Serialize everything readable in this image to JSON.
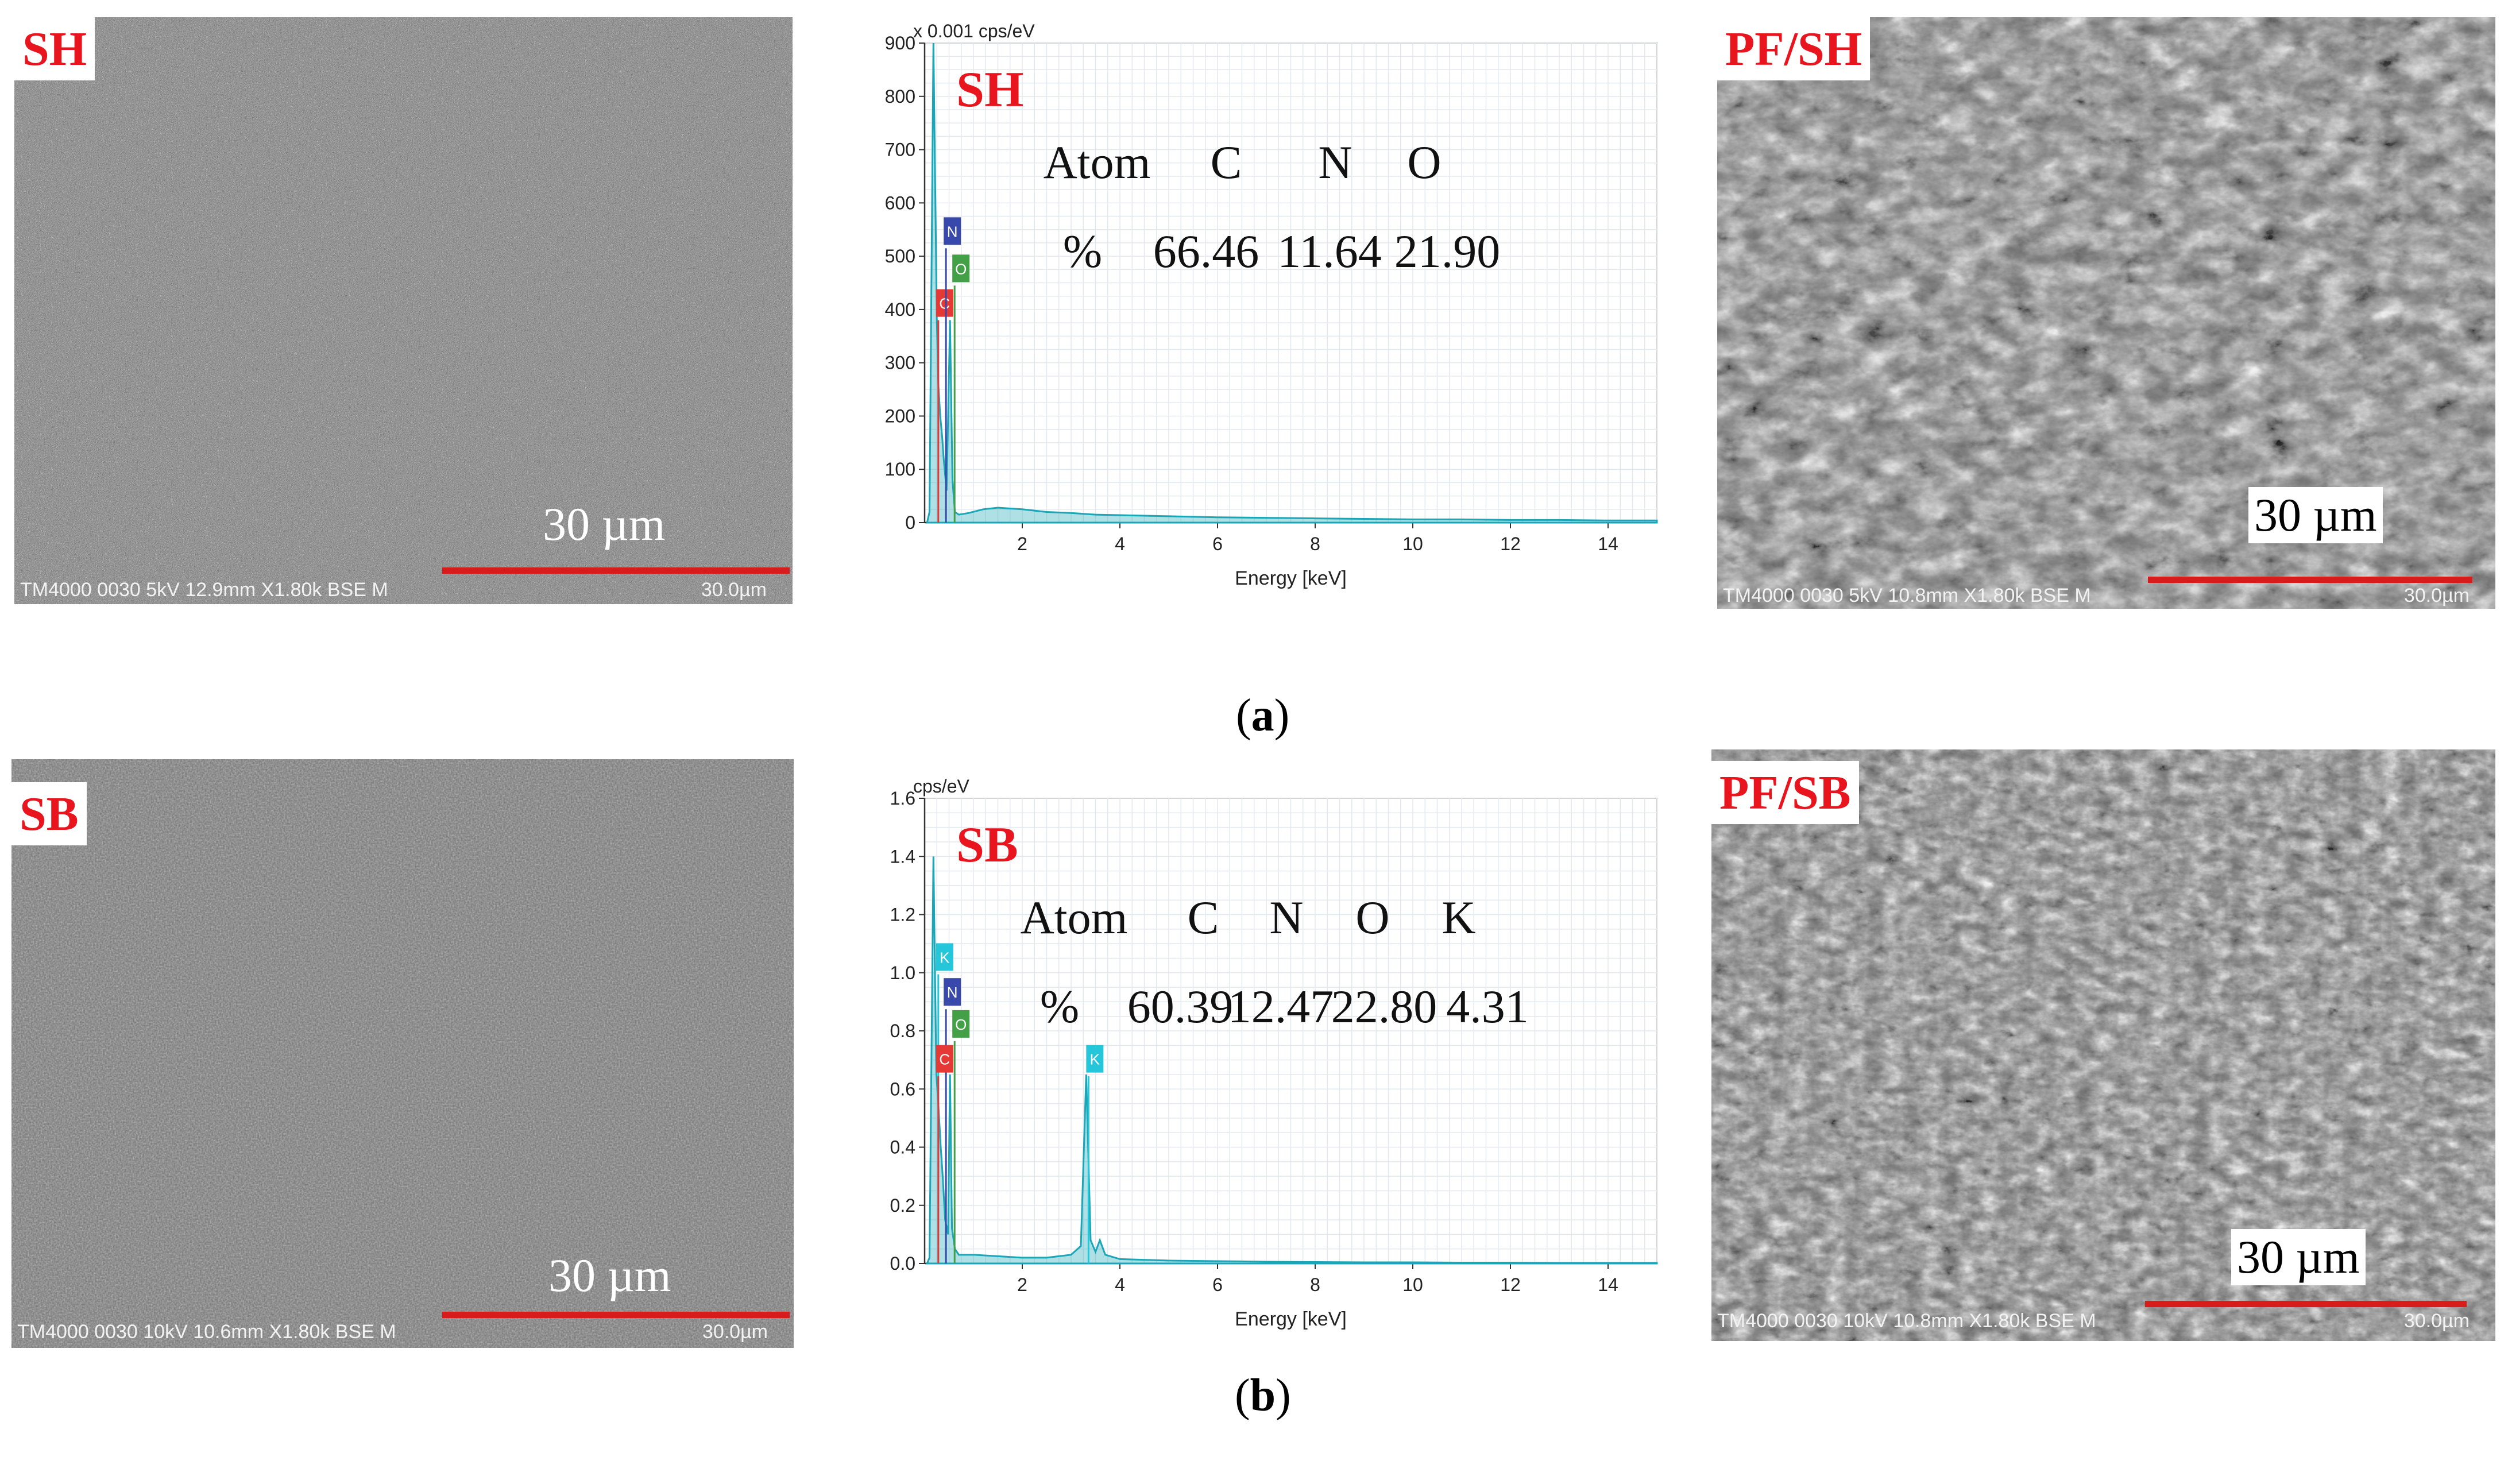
{
  "row_a": {
    "sem_left": {
      "label": "SH",
      "scale_text": "30 µm",
      "meta_left": "TM4000 0030 5kV 12.9mm X1.80k BSE M",
      "meta_right": "30.0µm"
    },
    "sem_right": {
      "label": "PF/SH",
      "scale_text": "30 µm",
      "meta_left": "TM4000 0030 5kV 10.8mm X1.80k BSE M",
      "meta_right": "30.0µm"
    },
    "caption_letter": "a",
    "spectrum": {
      "unit_label": "x 0.001 cps/eV",
      "sample_label": "SH",
      "table_header": [
        "Atom",
        "C",
        "N",
        "O"
      ],
      "table_values": [
        "%",
        "66.46",
        "11.64",
        "21.90"
      ],
      "peak_labels": [
        "N",
        "O",
        "C"
      ]
    }
  },
  "row_b": {
    "sem_left": {
      "label": "SB",
      "scale_text": "30 µm",
      "meta_left": "TM4000 0030 10kV 10.6mm X1.80k BSE M",
      "meta_right": "30.0µm"
    },
    "sem_right": {
      "label": "PF/SB",
      "scale_text": "30 µm",
      "meta_left": "TM4000 0030 10kV 10.8mm X1.80k BSE M",
      "meta_right": "30.0µm"
    },
    "caption_letter": "b",
    "spectrum": {
      "unit_label": "cps/eV",
      "sample_label": "SB",
      "table_header": [
        "Atom",
        "C",
        "N",
        "O",
        "K"
      ],
      "table_values": [
        "%",
        "60.39",
        "12.47",
        "22.80",
        "4.31"
      ],
      "peak_labels": [
        "K",
        "N",
        "O",
        "C",
        "K"
      ]
    }
  },
  "colors": {
    "label_red": "#e8141e",
    "spectrum_cyan": "#1aa6b7",
    "peak_C": "#e53935",
    "peak_N": "#3949ab",
    "peak_O": "#43a047",
    "peak_K": "#26c6da"
  },
  "chart_data": [
    {
      "type": "line",
      "sample": "SH",
      "xlabel": "Energy [keV]",
      "ylabel": "x 0.001 cps/eV",
      "xlim": [
        0,
        15
      ],
      "ylim": [
        0,
        900
      ],
      "xticks": [
        2,
        4,
        6,
        8,
        10,
        12,
        14
      ],
      "yticks": [
        0,
        100,
        200,
        300,
        400,
        500,
        600,
        700,
        800,
        900
      ],
      "grid": true,
      "x": [
        0.05,
        0.1,
        0.18,
        0.25,
        0.28,
        0.32,
        0.36,
        0.39,
        0.45,
        0.52,
        0.57,
        0.62,
        0.7,
        0.9,
        1.2,
        1.5,
        2.0,
        2.5,
        3.0,
        3.5,
        4.0,
        5.0,
        6.0,
        7.0,
        8.0,
        9.0,
        10.0,
        11.0,
        12.0,
        13.0,
        14.0,
        15.0
      ],
      "values": [
        0,
        20,
        900,
        380,
        260,
        200,
        160,
        120,
        60,
        380,
        80,
        20,
        15,
        18,
        25,
        28,
        25,
        20,
        18,
        15,
        14,
        12,
        10,
        9,
        8,
        7,
        6,
        6,
        5,
        5,
        4,
        4
      ],
      "peaks": [
        {
          "element": "C",
          "energy": 0.28,
          "label_y": 410
        },
        {
          "element": "N",
          "energy": 0.39,
          "label_y": 545
        },
        {
          "element": "O",
          "energy": 0.52,
          "label_y": 475
        }
      ]
    },
    {
      "type": "line",
      "sample": "SB",
      "xlabel": "Energy [keV]",
      "ylabel": "cps/eV",
      "xlim": [
        0,
        15
      ],
      "ylim": [
        0,
        1.6
      ],
      "xticks": [
        2,
        4,
        6,
        8,
        10,
        12,
        14
      ],
      "yticks": [
        0.0,
        0.2,
        0.4,
        0.6,
        0.8,
        1.0,
        1.2,
        1.4,
        1.6
      ],
      "grid": true,
      "x": [
        0.05,
        0.1,
        0.18,
        0.24,
        0.28,
        0.33,
        0.37,
        0.42,
        0.48,
        0.52,
        0.56,
        0.62,
        0.7,
        1.0,
        1.5,
        2.0,
        2.5,
        3.0,
        3.2,
        3.31,
        3.4,
        3.5,
        3.59,
        3.7,
        4.0,
        5.0,
        6.0,
        7.0,
        8.0,
        9.0,
        10.0,
        11.0,
        12.0,
        13.0,
        14.0,
        15.0
      ],
      "values": [
        0.0,
        0.02,
        1.4,
        0.65,
        0.55,
        0.4,
        0.3,
        0.15,
        0.1,
        0.65,
        0.12,
        0.05,
        0.03,
        0.03,
        0.025,
        0.02,
        0.02,
        0.03,
        0.06,
        0.65,
        0.08,
        0.04,
        0.08,
        0.03,
        0.015,
        0.01,
        0.008,
        0.006,
        0.005,
        0.004,
        0.004,
        0.003,
        0.003,
        0.002,
        0.002,
        0.002
      ],
      "peaks": [
        {
          "element": "K",
          "energy": 0.28,
          "label_y": 1.05
        },
        {
          "element": "N",
          "energy": 0.39,
          "label_y": 0.93
        },
        {
          "element": "O",
          "energy": 0.52,
          "label_y": 0.82
        },
        {
          "element": "C",
          "energy": 0.28,
          "label_y": 0.7
        },
        {
          "element": "K",
          "energy": 3.31,
          "label_y": 0.7
        }
      ]
    }
  ]
}
